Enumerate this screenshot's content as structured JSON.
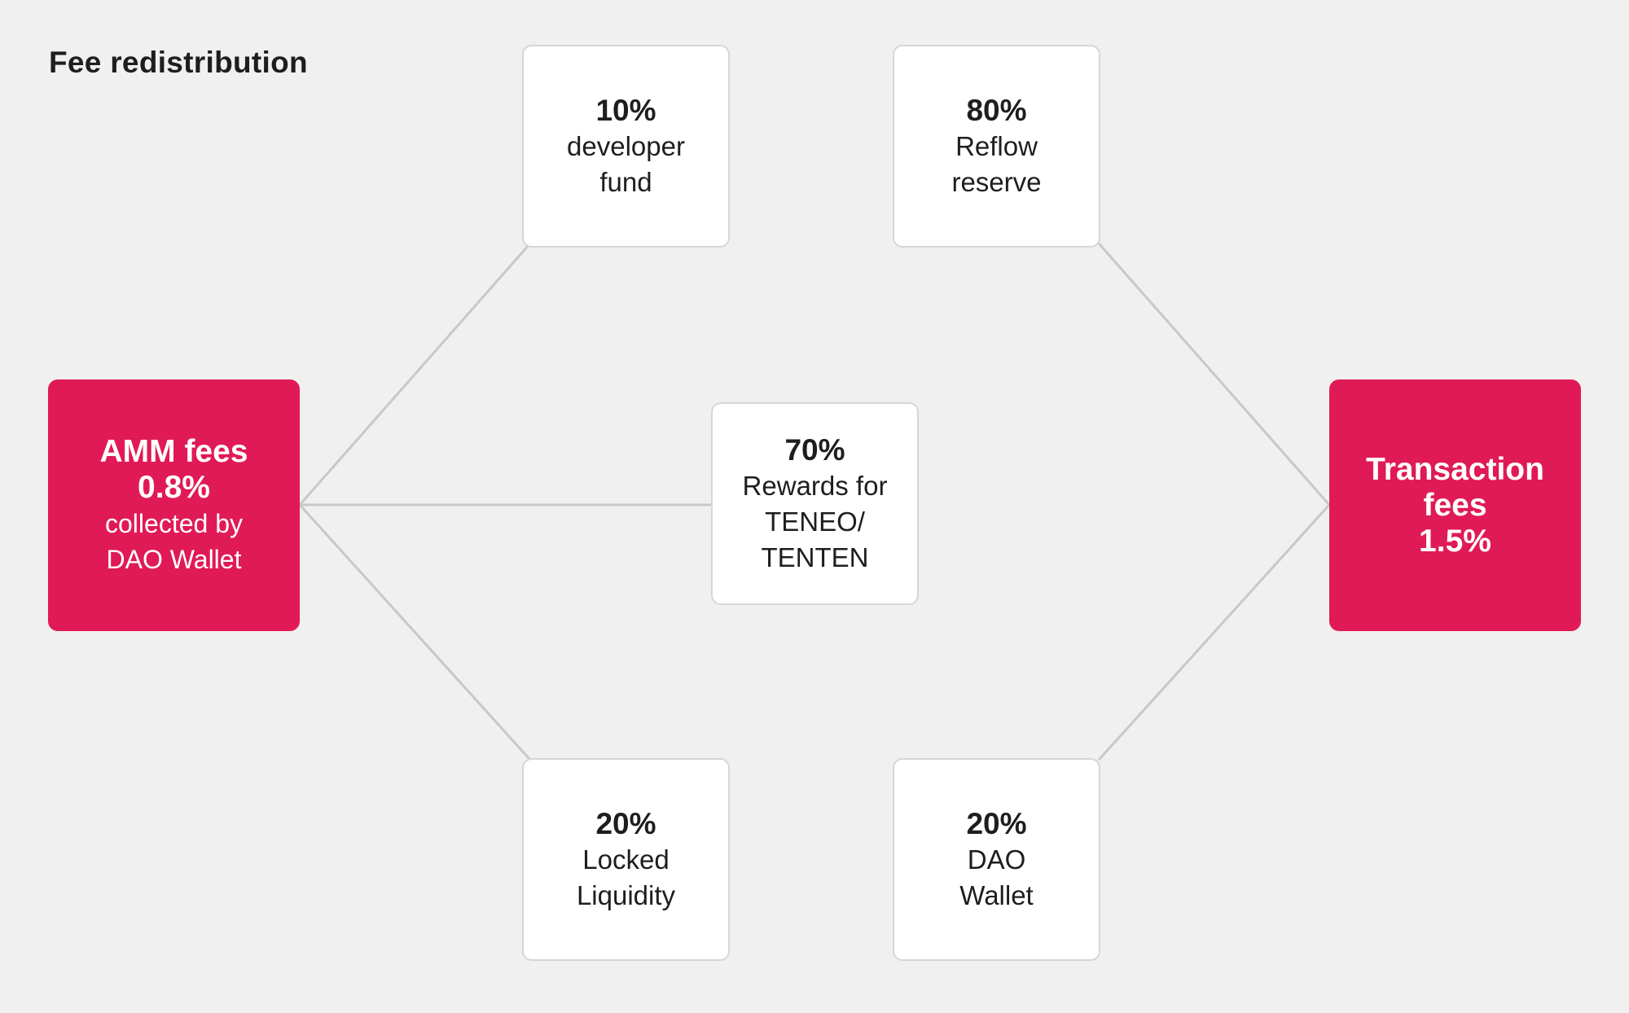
{
  "title": "Fee redistribution",
  "colors": {
    "accent": "#e01a56",
    "background": "#f0f0f0",
    "card": "#ffffff",
    "line": "#c8c8c8"
  },
  "sources": {
    "amm": {
      "line1": "AMM fees",
      "line2": "0.8%",
      "line3": "collected by",
      "line4": "DAO Wallet"
    },
    "transaction": {
      "line1": "Transaction",
      "line2": "fees",
      "line3": "1.5%"
    }
  },
  "allocations": {
    "developer_fund": {
      "percent": "10%",
      "line1": "developer",
      "line2": "fund"
    },
    "reflow_reserve": {
      "percent": "80%",
      "line1": "Reflow",
      "line2": "reserve"
    },
    "rewards": {
      "percent": "70%",
      "line1": "Rewards for",
      "line2": "TENEO/",
      "line3": "TENTEN"
    },
    "locked_liquidity": {
      "percent": "20%",
      "line1": "Locked",
      "line2": "Liquidity"
    },
    "dao_wallet": {
      "percent": "20%",
      "line1": "DAO",
      "line2": "Wallet"
    }
  }
}
